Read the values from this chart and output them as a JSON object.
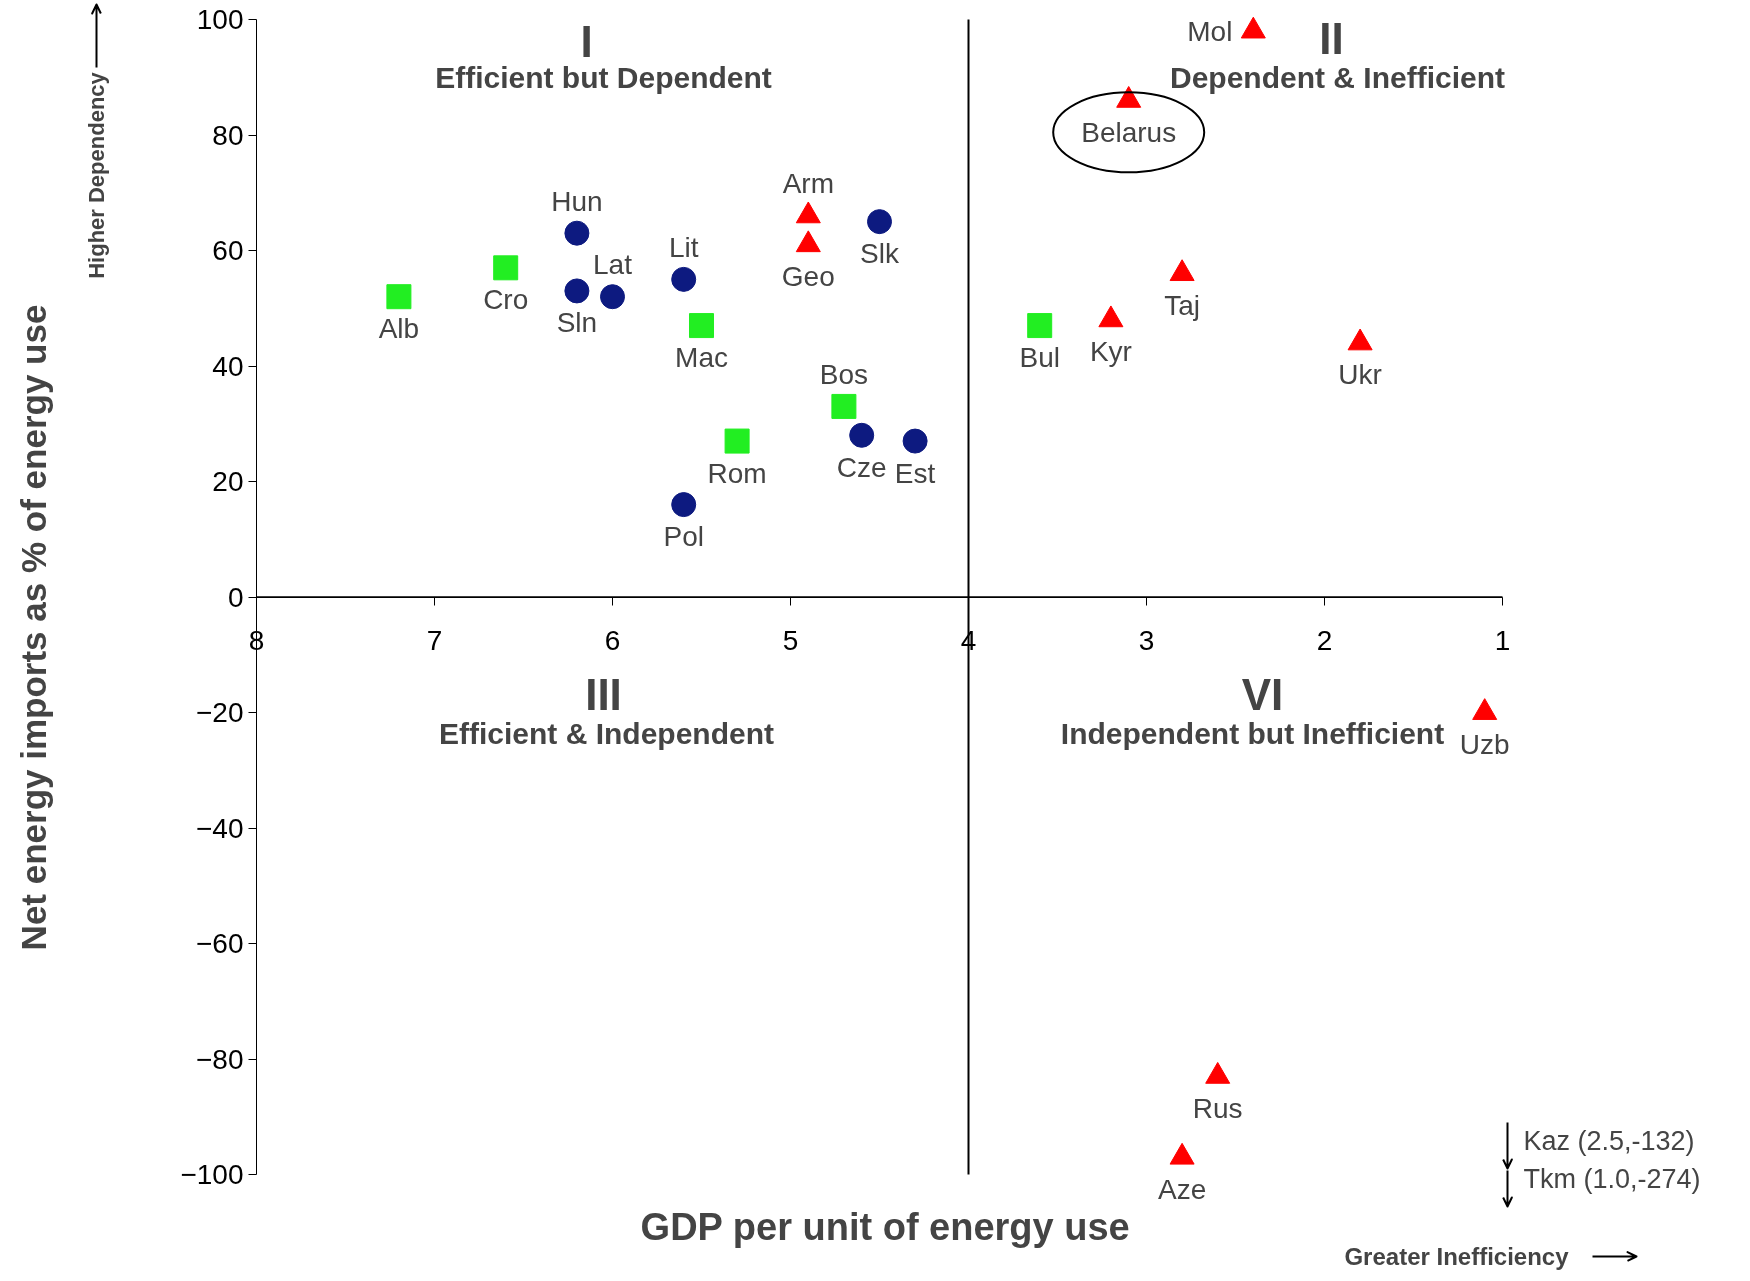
{
  "chart_data": {
    "type": "scatter",
    "xlabel": "GDP per unit of energy use",
    "ylabel": "Net energy imports as % of energy use",
    "xlim": [
      8,
      1
    ],
    "ylim": [
      -100,
      100
    ],
    "xticks": [
      8,
      7,
      6,
      5,
      4,
      3,
      2,
      1
    ],
    "yticks": [
      -100,
      -80,
      -60,
      -40,
      -20,
      0,
      20,
      40,
      60,
      80,
      100
    ],
    "grid": false,
    "ref_lines": [
      {
        "axis": "x",
        "value": 4,
        "color": "#000000"
      },
      {
        "axis": "y",
        "value": 0,
        "color": "#000000"
      }
    ],
    "series": [
      {
        "color": "#0d1a80",
        "marker": "circle",
        "x": [
          6.2,
          6.2,
          6.0,
          5.6,
          4.5,
          4.6,
          4.3,
          5.6
        ],
        "values": [
          63,
          53,
          52,
          55,
          65,
          28,
          27,
          16
        ],
        "value_labels": [
          "Hun",
          "Sln",
          "Lat",
          "Lit",
          "Slk",
          "Cze",
          "Est",
          "Pol"
        ]
      },
      {
        "color": "#22ee22",
        "marker": "square",
        "x": [
          7.2,
          6.6,
          5.5,
          5.3,
          4.7,
          3.6
        ],
        "values": [
          52,
          57,
          47,
          27,
          33,
          47
        ],
        "value_labels": [
          "Alb",
          "Cro",
          "Mac",
          "Rom",
          "Bos",
          "Bul"
        ]
      },
      {
        "color": "#ff0000",
        "marker": "triangle",
        "x": [
          2.4,
          3.1,
          4.9,
          4.9,
          2.8,
          3.2,
          1.8,
          1.1,
          2.6,
          2.8
        ],
        "values": [
          98,
          86,
          66,
          61,
          56,
          48,
          44,
          -20,
          -83,
          -97
        ],
        "value_labels": [
          "Mol",
          "Belarus",
          "Arm",
          "Geo",
          "Taj",
          "Kyr",
          "Ukr",
          "Uzb",
          "Rus",
          "Aze"
        ]
      }
    ],
    "annotations": [
      "Higher Dependency",
      "Greater Inefficiency",
      "Kaz (2.5,-132)",
      "Tkm (1.0,-274)",
      "I",
      "Efficient but Dependent",
      "II",
      "Dependent & Inefficient",
      "III",
      "Efficient & Independent",
      "VI",
      "Independent but Inefficient"
    ]
  }
}
